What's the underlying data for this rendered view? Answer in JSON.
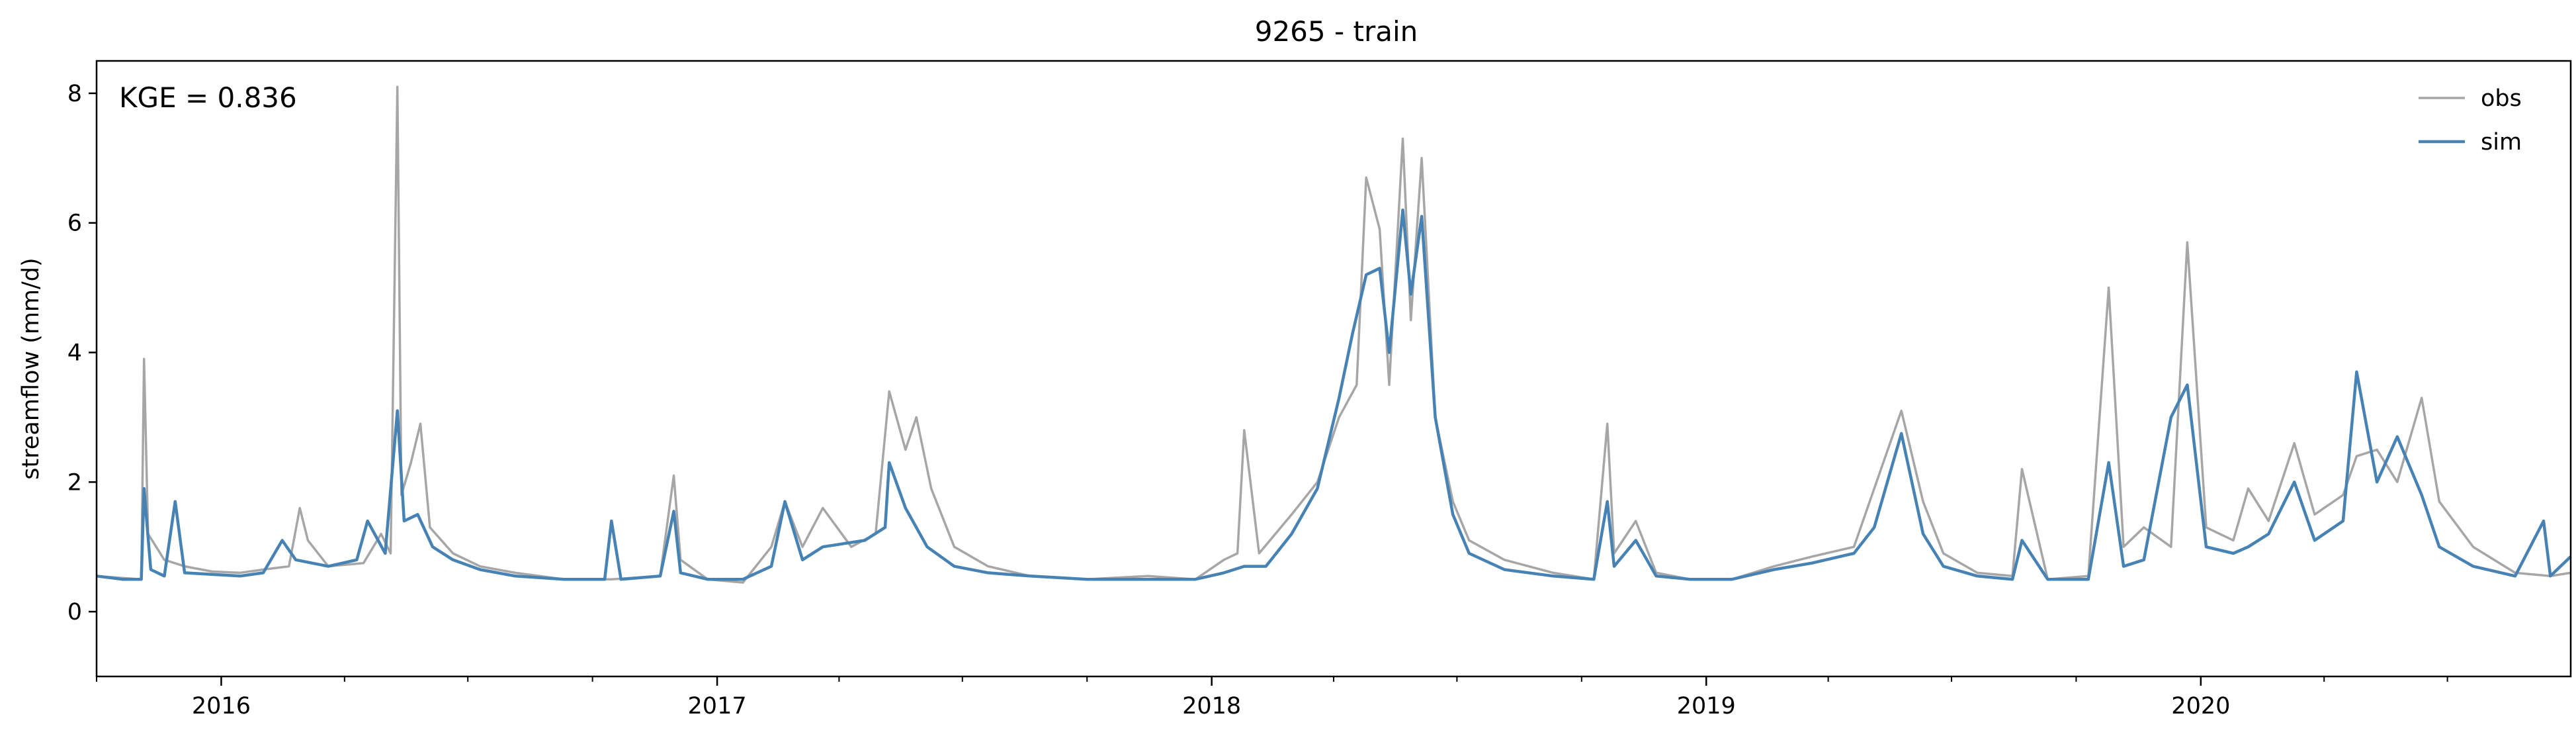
{
  "chart_data": {
    "type": "line",
    "title": "9265 - train",
    "xlabel": "",
    "ylabel": "streamflow (mm/d)",
    "annotation": "KGE = 0.836",
    "xlim": [
      "2015-10-01",
      "2020-09-30"
    ],
    "ylim": [
      -1,
      8.5
    ],
    "grid": false,
    "legend_position": "top-right",
    "x_ticks": [
      "2016",
      "2017",
      "2018",
      "2019",
      "2020"
    ],
    "y_ticks": [
      "0",
      "2",
      "4",
      "6",
      "8"
    ],
    "series": [
      {
        "name": "obs",
        "color": "#a6a6a6",
        "points": [
          [
            "2015-10-01",
            0.55
          ],
          [
            "2015-10-20",
            0.52
          ],
          [
            "2015-11-03",
            0.5
          ],
          [
            "2015-11-05",
            3.9
          ],
          [
            "2015-11-08",
            1.2
          ],
          [
            "2015-11-20",
            0.8
          ],
          [
            "2015-12-05",
            0.7
          ],
          [
            "2015-12-25",
            0.62
          ],
          [
            "2016-01-15",
            0.6
          ],
          [
            "2016-02-01",
            0.65
          ],
          [
            "2016-02-20",
            0.7
          ],
          [
            "2016-02-28",
            1.6
          ],
          [
            "2016-03-05",
            1.1
          ],
          [
            "2016-03-20",
            0.7
          ],
          [
            "2016-04-15",
            0.75
          ],
          [
            "2016-04-28",
            1.2
          ],
          [
            "2016-05-05",
            0.9
          ],
          [
            "2016-05-10",
            8.1
          ],
          [
            "2016-05-13",
            1.8
          ],
          [
            "2016-05-20",
            2.3
          ],
          [
            "2016-05-27",
            2.9
          ],
          [
            "2016-06-03",
            1.3
          ],
          [
            "2016-06-20",
            0.9
          ],
          [
            "2016-07-10",
            0.7
          ],
          [
            "2016-08-05",
            0.6
          ],
          [
            "2016-09-10",
            0.5
          ],
          [
            "2016-10-15",
            0.5
          ],
          [
            "2016-11-20",
            0.55
          ],
          [
            "2016-11-30",
            2.1
          ],
          [
            "2016-12-05",
            0.8
          ],
          [
            "2016-12-25",
            0.5
          ],
          [
            "2017-01-20",
            0.45
          ],
          [
            "2017-02-10",
            1.0
          ],
          [
            "2017-02-20",
            1.7
          ],
          [
            "2017-03-05",
            1.0
          ],
          [
            "2017-03-20",
            1.6
          ],
          [
            "2017-04-10",
            1.0
          ],
          [
            "2017-04-28",
            1.2
          ],
          [
            "2017-05-08",
            3.4
          ],
          [
            "2017-05-20",
            2.5
          ],
          [
            "2017-05-28",
            3.0
          ],
          [
            "2017-06-08",
            1.9
          ],
          [
            "2017-06-25",
            1.0
          ],
          [
            "2017-07-20",
            0.7
          ],
          [
            "2017-08-20",
            0.55
          ],
          [
            "2017-10-01",
            0.5
          ],
          [
            "2017-11-15",
            0.55
          ],
          [
            "2017-12-20",
            0.5
          ],
          [
            "2018-01-10",
            0.8
          ],
          [
            "2018-01-20",
            0.9
          ],
          [
            "2018-01-25",
            2.8
          ],
          [
            "2018-02-05",
            0.9
          ],
          [
            "2018-03-01",
            1.5
          ],
          [
            "2018-03-20",
            2.0
          ],
          [
            "2018-04-05",
            3.0
          ],
          [
            "2018-04-18",
            3.5
          ],
          [
            "2018-04-25",
            6.7
          ],
          [
            "2018-05-05",
            5.9
          ],
          [
            "2018-05-12",
            3.5
          ],
          [
            "2018-05-22",
            7.3
          ],
          [
            "2018-05-28",
            4.5
          ],
          [
            "2018-06-05",
            7.0
          ],
          [
            "2018-06-15",
            3.0
          ],
          [
            "2018-06-28",
            1.7
          ],
          [
            "2018-07-10",
            1.1
          ],
          [
            "2018-08-05",
            0.8
          ],
          [
            "2018-09-10",
            0.6
          ],
          [
            "2018-10-10",
            0.5
          ],
          [
            "2018-10-20",
            2.9
          ],
          [
            "2018-10-25",
            0.9
          ],
          [
            "2018-11-10",
            1.4
          ],
          [
            "2018-11-25",
            0.6
          ],
          [
            "2018-12-20",
            0.5
          ],
          [
            "2019-01-20",
            0.5
          ],
          [
            "2019-02-20",
            0.7
          ],
          [
            "2019-03-20",
            0.85
          ],
          [
            "2019-04-20",
            1.0
          ],
          [
            "2019-05-05",
            1.9
          ],
          [
            "2019-05-25",
            3.1
          ],
          [
            "2019-06-10",
            1.7
          ],
          [
            "2019-06-25",
            0.9
          ],
          [
            "2019-07-20",
            0.6
          ],
          [
            "2019-08-15",
            0.55
          ],
          [
            "2019-08-22",
            2.2
          ],
          [
            "2019-09-10",
            0.5
          ],
          [
            "2019-10-10",
            0.55
          ],
          [
            "2019-10-25",
            5.0
          ],
          [
            "2019-11-05",
            1.0
          ],
          [
            "2019-11-20",
            1.3
          ],
          [
            "2019-12-10",
            1.0
          ],
          [
            "2019-12-22",
            5.7
          ],
          [
            "2020-01-05",
            1.3
          ],
          [
            "2020-01-25",
            1.1
          ],
          [
            "2020-02-05",
            1.9
          ],
          [
            "2020-02-20",
            1.4
          ],
          [
            "2020-03-10",
            2.6
          ],
          [
            "2020-03-25",
            1.5
          ],
          [
            "2020-04-15",
            1.8
          ],
          [
            "2020-04-25",
            2.4
          ],
          [
            "2020-05-10",
            2.5
          ],
          [
            "2020-05-25",
            2.0
          ],
          [
            "2020-06-12",
            3.3
          ],
          [
            "2020-06-25",
            1.7
          ],
          [
            "2020-07-20",
            1.0
          ],
          [
            "2020-08-20",
            0.6
          ],
          [
            "2020-09-15",
            0.55
          ],
          [
            "2020-09-30",
            0.6
          ]
        ]
      },
      {
        "name": "sim",
        "color": "#4682b4",
        "points": [
          [
            "2015-10-01",
            0.55
          ],
          [
            "2015-10-20",
            0.5
          ],
          [
            "2015-11-03",
            0.5
          ],
          [
            "2015-11-05",
            1.9
          ],
          [
            "2015-11-10",
            0.65
          ],
          [
            "2015-11-20",
            0.55
          ],
          [
            "2015-11-28",
            1.7
          ],
          [
            "2015-12-05",
            0.6
          ],
          [
            "2016-01-15",
            0.55
          ],
          [
            "2016-02-01",
            0.6
          ],
          [
            "2016-02-15",
            1.1
          ],
          [
            "2016-02-25",
            0.8
          ],
          [
            "2016-03-20",
            0.7
          ],
          [
            "2016-04-10",
            0.8
          ],
          [
            "2016-04-18",
            1.4
          ],
          [
            "2016-05-01",
            0.9
          ],
          [
            "2016-05-10",
            3.1
          ],
          [
            "2016-05-15",
            1.4
          ],
          [
            "2016-05-25",
            1.5
          ],
          [
            "2016-06-05",
            1.0
          ],
          [
            "2016-06-20",
            0.8
          ],
          [
            "2016-07-10",
            0.65
          ],
          [
            "2016-08-05",
            0.55
          ],
          [
            "2016-09-10",
            0.5
          ],
          [
            "2016-10-10",
            0.5
          ],
          [
            "2016-10-15",
            1.4
          ],
          [
            "2016-10-22",
            0.5
          ],
          [
            "2016-11-20",
            0.55
          ],
          [
            "2016-11-30",
            1.55
          ],
          [
            "2016-12-05",
            0.6
          ],
          [
            "2016-12-25",
            0.5
          ],
          [
            "2017-01-20",
            0.5
          ],
          [
            "2017-02-10",
            0.7
          ],
          [
            "2017-02-20",
            1.7
          ],
          [
            "2017-03-05",
            0.8
          ],
          [
            "2017-03-20",
            1.0
          ],
          [
            "2017-04-20",
            1.1
          ],
          [
            "2017-05-05",
            1.3
          ],
          [
            "2017-05-08",
            2.3
          ],
          [
            "2017-05-20",
            1.6
          ],
          [
            "2017-06-05",
            1.0
          ],
          [
            "2017-06-25",
            0.7
          ],
          [
            "2017-07-20",
            0.6
          ],
          [
            "2017-08-20",
            0.55
          ],
          [
            "2017-10-01",
            0.5
          ],
          [
            "2017-11-15",
            0.5
          ],
          [
            "2017-12-20",
            0.5
          ],
          [
            "2018-01-10",
            0.6
          ],
          [
            "2018-01-25",
            0.7
          ],
          [
            "2018-02-10",
            0.7
          ],
          [
            "2018-03-01",
            1.2
          ],
          [
            "2018-03-20",
            1.9
          ],
          [
            "2018-04-05",
            3.3
          ],
          [
            "2018-04-15",
            4.3
          ],
          [
            "2018-04-25",
            5.2
          ],
          [
            "2018-05-05",
            5.3
          ],
          [
            "2018-05-12",
            4.0
          ],
          [
            "2018-05-22",
            6.2
          ],
          [
            "2018-05-28",
            4.9
          ],
          [
            "2018-06-05",
            6.1
          ],
          [
            "2018-06-15",
            3.0
          ],
          [
            "2018-06-28",
            1.5
          ],
          [
            "2018-07-10",
            0.9
          ],
          [
            "2018-08-05",
            0.65
          ],
          [
            "2018-09-10",
            0.55
          ],
          [
            "2018-10-10",
            0.5
          ],
          [
            "2018-10-20",
            1.7
          ],
          [
            "2018-10-25",
            0.7
          ],
          [
            "2018-11-10",
            1.1
          ],
          [
            "2018-11-25",
            0.55
          ],
          [
            "2018-12-20",
            0.5
          ],
          [
            "2019-01-20",
            0.5
          ],
          [
            "2019-02-20",
            0.65
          ],
          [
            "2019-03-20",
            0.75
          ],
          [
            "2019-04-20",
            0.9
          ],
          [
            "2019-05-05",
            1.3
          ],
          [
            "2019-05-25",
            2.75
          ],
          [
            "2019-06-10",
            1.2
          ],
          [
            "2019-06-25",
            0.7
          ],
          [
            "2019-07-20",
            0.55
          ],
          [
            "2019-08-15",
            0.5
          ],
          [
            "2019-08-22",
            1.1
          ],
          [
            "2019-09-10",
            0.5
          ],
          [
            "2019-10-10",
            0.5
          ],
          [
            "2019-10-25",
            2.3
          ],
          [
            "2019-11-05",
            0.7
          ],
          [
            "2019-11-20",
            0.8
          ],
          [
            "2019-12-10",
            3.0
          ],
          [
            "2019-12-22",
            3.5
          ],
          [
            "2020-01-05",
            1.0
          ],
          [
            "2020-01-25",
            0.9
          ],
          [
            "2020-02-05",
            1.0
          ],
          [
            "2020-02-20",
            1.2
          ],
          [
            "2020-03-10",
            2.0
          ],
          [
            "2020-03-25",
            1.1
          ],
          [
            "2020-04-15",
            1.4
          ],
          [
            "2020-04-25",
            3.7
          ],
          [
            "2020-05-10",
            2.0
          ],
          [
            "2020-05-25",
            2.7
          ],
          [
            "2020-06-12",
            1.8
          ],
          [
            "2020-06-25",
            1.0
          ],
          [
            "2020-07-20",
            0.7
          ],
          [
            "2020-08-20",
            0.55
          ],
          [
            "2020-09-10",
            1.4
          ],
          [
            "2020-09-15",
            0.55
          ],
          [
            "2020-09-30",
            0.85
          ]
        ]
      }
    ]
  }
}
